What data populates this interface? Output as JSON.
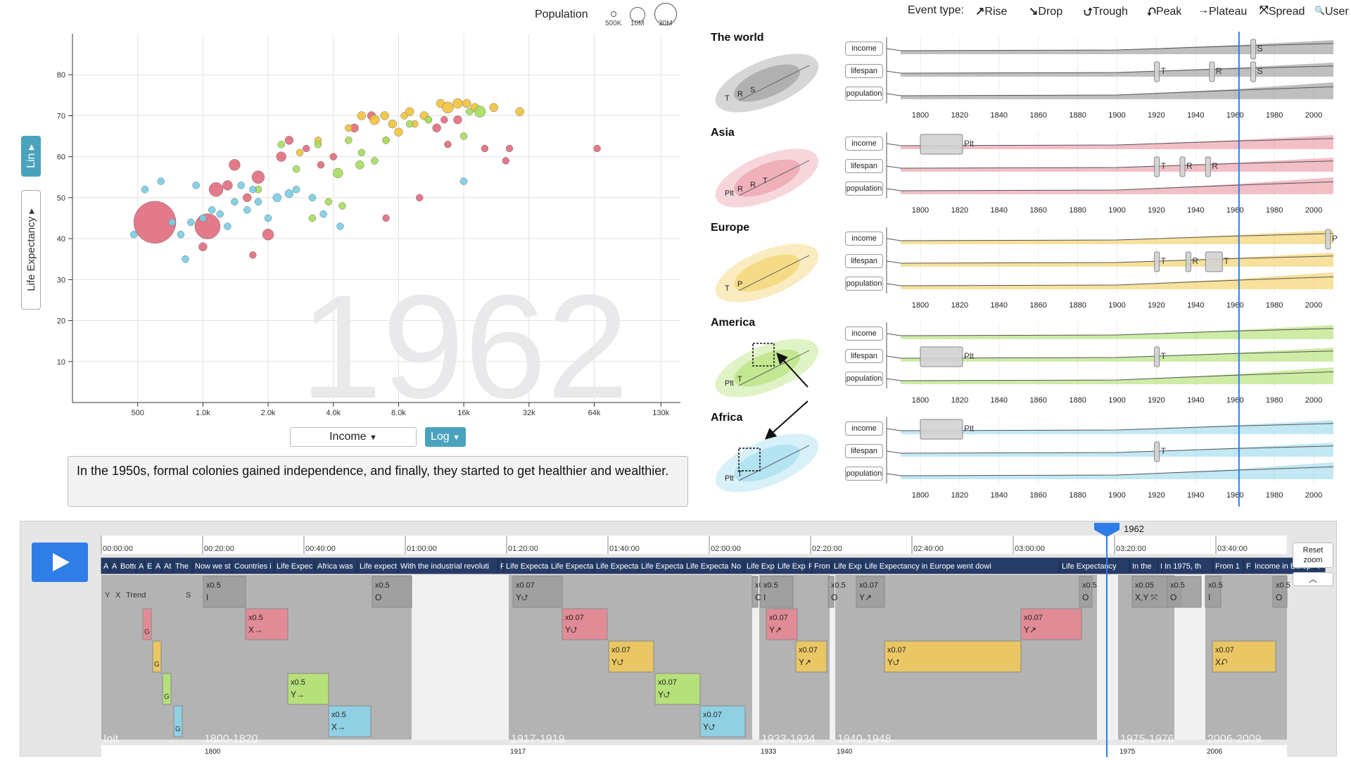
{
  "scatter": {
    "population_label": "Population",
    "population_sizes": [
      "500K",
      "10M",
      "30M"
    ],
    "y_scale_button": "Lin",
    "y_variable": "Life Expectancy",
    "x_variable": "Income",
    "x_scale_button": "Log",
    "year_watermark": "1962",
    "caption": "In the 1950s, formal colonies gained independence, and finally, they started to get healthier and wealthier.",
    "y_ticks": [
      "10",
      "20",
      "30",
      "40",
      "50",
      "60",
      "70",
      "80"
    ],
    "x_ticks": [
      "500",
      "1.0k",
      "2.0k",
      "4.0k",
      "8.0k",
      "16k",
      "32k",
      "64k",
      "130k"
    ],
    "colors": {
      "asia": "#e06b7d",
      "europe": "#f2c23a",
      "america": "#a6dd5c",
      "africa": "#79cde3"
    }
  },
  "chart_data": {
    "type": "scatter",
    "title": "",
    "xlabel": "Income",
    "ylabel": "Life Expectancy",
    "x_scale": "log",
    "xlim": [
      250,
      160000
    ],
    "ylim": [
      0,
      90
    ],
    "grid": true,
    "series": [
      {
        "name": "Asia",
        "color": "#e06b7d",
        "points": [
          [
            600,
            44,
            30
          ],
          [
            1050,
            43,
            18
          ],
          [
            1000,
            38,
            6
          ],
          [
            1150,
            52,
            10
          ],
          [
            1300,
            53,
            7
          ],
          [
            1400,
            58,
            8
          ],
          [
            1700,
            36,
            5
          ],
          [
            1600,
            50,
            6
          ],
          [
            1800,
            55,
            9
          ],
          [
            2000,
            41,
            8
          ],
          [
            2300,
            60,
            7
          ],
          [
            2500,
            64,
            6
          ],
          [
            3000,
            62,
            5
          ],
          [
            3500,
            58,
            5
          ],
          [
            4000,
            60,
            5
          ],
          [
            5000,
            67,
            6
          ],
          [
            6000,
            70,
            6
          ],
          [
            12000,
            67,
            6
          ],
          [
            13000,
            69,
            5
          ],
          [
            13500,
            63,
            5
          ],
          [
            15000,
            69,
            6
          ],
          [
            20000,
            62,
            5
          ],
          [
            25000,
            59,
            5
          ],
          [
            26000,
            62,
            5
          ],
          [
            66000,
            62,
            5
          ],
          [
            10000,
            50,
            5
          ],
          [
            7000,
            45,
            5
          ]
        ]
      },
      {
        "name": "Europe",
        "color": "#f2c23a",
        "points": [
          [
            2800,
            61,
            5
          ],
          [
            3400,
            64,
            5
          ],
          [
            4700,
            67,
            5
          ],
          [
            5400,
            70,
            6
          ],
          [
            6200,
            69,
            7
          ],
          [
            6900,
            70,
            6
          ],
          [
            7500,
            68,
            6
          ],
          [
            8500,
            70,
            5
          ],
          [
            9000,
            71,
            6
          ],
          [
            10500,
            70,
            6
          ],
          [
            12500,
            73,
            6
          ],
          [
            13500,
            72,
            8
          ],
          [
            15000,
            73,
            7
          ],
          [
            16500,
            73,
            6
          ],
          [
            18000,
            72,
            6
          ],
          [
            22000,
            72,
            6
          ],
          [
            29000,
            71,
            6
          ],
          [
            8000,
            66,
            6
          ],
          [
            9500,
            68,
            5
          ],
          [
            11000,
            69,
            5
          ],
          [
            7000,
            64,
            5
          ]
        ]
      },
      {
        "name": "America",
        "color": "#a6dd5c",
        "points": [
          [
            1800,
            52,
            5
          ],
          [
            2300,
            63,
            5
          ],
          [
            2700,
            57,
            5
          ],
          [
            3400,
            63,
            5
          ],
          [
            4200,
            56,
            7
          ],
          [
            4700,
            64,
            5
          ],
          [
            5400,
            61,
            5
          ],
          [
            6200,
            59,
            5
          ],
          [
            7000,
            64,
            5
          ],
          [
            9000,
            68,
            5
          ],
          [
            11000,
            69,
            5
          ],
          [
            16000,
            65,
            5
          ],
          [
            17000,
            71,
            5
          ],
          [
            19000,
            71,
            8
          ],
          [
            4400,
            48,
            5
          ],
          [
            3800,
            49,
            5
          ],
          [
            3200,
            45,
            5
          ],
          [
            5300,
            58,
            6
          ]
        ]
      },
      {
        "name": "Africa",
        "color": "#79cde3",
        "points": [
          [
            480,
            41,
            5
          ],
          [
            540,
            52,
            5
          ],
          [
            640,
            54,
            5
          ],
          [
            720,
            44,
            5
          ],
          [
            790,
            41,
            5
          ],
          [
            830,
            35,
            5
          ],
          [
            880,
            44,
            5
          ],
          [
            930,
            53,
            5
          ],
          [
            1000,
            45,
            5
          ],
          [
            1100,
            47,
            5
          ],
          [
            1200,
            46,
            5
          ],
          [
            1300,
            43,
            5
          ],
          [
            1400,
            49,
            5
          ],
          [
            1500,
            53,
            5
          ],
          [
            1600,
            47,
            5
          ],
          [
            1700,
            52,
            5
          ],
          [
            1800,
            49,
            5
          ],
          [
            2000,
            45,
            5
          ],
          [
            2200,
            50,
            6
          ],
          [
            2500,
            51,
            6
          ],
          [
            2700,
            52,
            5
          ],
          [
            3200,
            50,
            5
          ],
          [
            3600,
            46,
            5
          ],
          [
            4300,
            43,
            5
          ],
          [
            16000,
            54,
            5
          ]
        ]
      }
    ]
  },
  "event_legend": {
    "label": "Event type:",
    "types": [
      {
        "icon": "↗",
        "name": "Rise"
      },
      {
        "icon": "↘",
        "name": "Drop"
      },
      {
        "icon": "⮍",
        "name": "Trough"
      },
      {
        "icon": "⮏",
        "name": "Peak"
      },
      {
        "icon": "→",
        "name": "Plateau"
      },
      {
        "icon": "⤧",
        "name": "Spread"
      },
      {
        "icon": "🔍",
        "name": "User"
      }
    ]
  },
  "regions": [
    {
      "name": "The world",
      "color": "#8a8a8a"
    },
    {
      "name": "Asia",
      "color": "#e88a99"
    },
    {
      "name": "Europe",
      "color": "#f0c94a"
    },
    {
      "name": "America",
      "color": "#a6dd5c"
    },
    {
      "name": "Africa",
      "color": "#8fd6eb"
    }
  ],
  "region_rows": [
    "income",
    "lifespan",
    "population"
  ],
  "region_x_ticks": [
    "1800",
    "1820",
    "1840",
    "1860",
    "1880",
    "1900",
    "1920",
    "1940",
    "1960",
    "1980",
    "2000"
  ],
  "region_events": [
    [
      {
        "row": 0,
        "year": 1968,
        "label": "S"
      },
      {
        "row": 1,
        "year": 1919,
        "label": "T"
      },
      {
        "row": 1,
        "year": 1947,
        "label": "R"
      },
      {
        "row": 1,
        "year": 1968,
        "label": "S"
      }
    ],
    [
      {
        "row": 0,
        "year": 1800,
        "label": "Plt",
        "width": 20
      },
      {
        "row": 1,
        "year": 1919,
        "label": "T"
      },
      {
        "row": 1,
        "year": 1932,
        "label": "R"
      },
      {
        "row": 1,
        "year": 1945,
        "label": "R"
      }
    ],
    [
      {
        "row": 0,
        "year": 2006,
        "label": "P"
      },
      {
        "row": 1,
        "year": 1919,
        "label": "T"
      },
      {
        "row": 1,
        "year": 1935,
        "label": "R"
      },
      {
        "row": 1,
        "year": 1945,
        "label": "T",
        "width": 8
      }
    ],
    [
      {
        "row": 1,
        "year": 1800,
        "label": "Plt",
        "width": 20
      },
      {
        "row": 1,
        "year": 1919,
        "label": "T"
      }
    ],
    [
      {
        "row": 0,
        "year": 1800,
        "label": "Plt",
        "width": 20
      },
      {
        "row": 1,
        "year": 1919,
        "label": "T"
      }
    ]
  ],
  "thumb_labels": [
    [
      "T",
      "R",
      "S"
    ],
    [
      "Plt",
      "R",
      "R",
      "T"
    ],
    [
      "T",
      "P"
    ],
    [
      "Plt",
      "T"
    ],
    [
      "Plt",
      "T"
    ]
  ],
  "timeline": {
    "current_year": "1962",
    "reset_zoom": "Reset zoom",
    "time_ticks": [
      "00:00:00",
      "00:20:00",
      "00:40:00",
      "01:00:00",
      "01:20:00",
      "01:40:00",
      "02:00:00",
      "02:20:00",
      "02:40:00",
      "03:00:00",
      "03:20:00",
      "03:40:00"
    ],
    "caption_track": [
      "A",
      "A",
      "Botto",
      "A",
      "E",
      "A",
      "At",
      "The",
      "Now we st",
      "Countries i",
      "Life Expec",
      "Africa was",
      "Life expect",
      "With the industrial revoluti",
      "F",
      "Life Expecta",
      "Life Expecta",
      "Life Expecta",
      "Life Expecta",
      "Life Expecta",
      "No",
      "Life Exp",
      "Life Exp",
      "F",
      "Fron",
      "Life Exp",
      "Life Expectancy in Europe went dowi",
      "Life Expectancy",
      "In the",
      "I",
      "In 1975, th",
      "From 1",
      "F",
      "Income in Europ",
      "F"
    ],
    "segments": [
      "Init",
      "1800-1820",
      "1917-1919",
      "1933-1934",
      "1940-1948",
      "1975-1976",
      "2006-2009"
    ],
    "segment_years": [
      "1800",
      "1917",
      "1933",
      "1940",
      "1975",
      "2006"
    ],
    "events": [
      {
        "lane": 0,
        "speed": "x0.5",
        "axis": "I"
      },
      {
        "lane": 0,
        "speed": "x0.5",
        "axis": "O"
      },
      {
        "lane": 0,
        "speed": "x0.07",
        "axis": "Y⮍"
      },
      {
        "lane": 0,
        "speed": "x0.5",
        "axis": "O"
      },
      {
        "lane": 0,
        "speed": "x0.5",
        "axis": "I"
      },
      {
        "lane": 0,
        "speed": "x0.5",
        "axis": "O"
      },
      {
        "lane": 0,
        "speed": "x0.07",
        "axis": "Y↗"
      },
      {
        "lane": 0,
        "speed": "x0.5",
        "axis": "O"
      },
      {
        "lane": 0,
        "speed": "x0.05",
        "axis": "X,Y ⤧"
      },
      {
        "lane": 0,
        "speed": "x0.5",
        "axis": "O"
      },
      {
        "lane": 0,
        "speed": "x0.5",
        "axis": "I"
      },
      {
        "lane": 0,
        "speed": "x0.5",
        "axis": "O"
      },
      {
        "lane": 1,
        "speed": "x0.5",
        "axis": "X→"
      },
      {
        "lane": 1,
        "speed": "x0.07",
        "axis": "Y⮍"
      },
      {
        "lane": 1,
        "speed": "x0.07",
        "axis": "Y↗"
      },
      {
        "lane": 1,
        "speed": "x0.07",
        "axis": "Y↗"
      },
      {
        "lane": 2,
        "speed": "x0.07",
        "axis": "Y⮍"
      },
      {
        "lane": 2,
        "speed": "x0.07",
        "axis": "Y↗"
      },
      {
        "lane": 2,
        "speed": "x0.07",
        "axis": "Y⮍"
      },
      {
        "lane": 2,
        "speed": "x0.07",
        "axis": "X⮏"
      },
      {
        "lane": 3,
        "speed": "x0.5",
        "axis": "Y→"
      },
      {
        "lane": 3,
        "speed": "x0.07",
        "axis": "Y⮍"
      },
      {
        "lane": 4,
        "speed": "x0.5",
        "axis": "X→"
      },
      {
        "lane": 4,
        "speed": "x0.07",
        "axis": "Y⮍"
      }
    ],
    "init_labels": [
      "Y",
      "X",
      "Trend",
      "S"
    ],
    "g_labels": [
      "G",
      "G",
      "G",
      "G"
    ]
  }
}
